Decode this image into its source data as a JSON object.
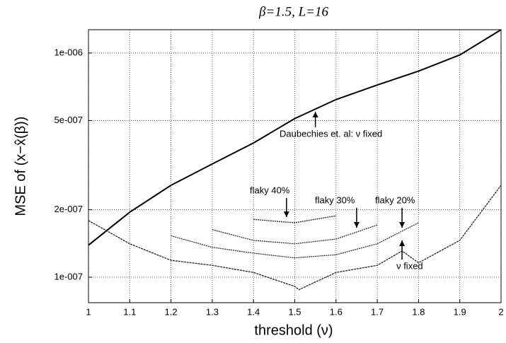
{
  "chart_data": {
    "type": "line",
    "title": "β=1.5, L=16",
    "xlabel": "threshold (ν)",
    "ylabel": "MSE of (x−x̂(β))",
    "xlim": [
      1,
      2
    ],
    "xticks": [
      1,
      1.1,
      1.2,
      1.3,
      1.4,
      1.5,
      1.6,
      1.7,
      1.8,
      1.9,
      2
    ],
    "ylim": [
      7.7e-08,
      1.27e-06
    ],
    "yticks": [
      {
        "value": 1e-07,
        "label": "1e-007"
      },
      {
        "value": 2e-07,
        "label": "2e-007"
      },
      {
        "value": 5e-07,
        "label": "5e-007"
      },
      {
        "value": 1e-06,
        "label": "1e-006"
      }
    ],
    "ylog": true,
    "grid": true,
    "series": [
      {
        "name": "Daubechies et. al: ν fixed",
        "color": "#000000",
        "x": [
          1,
          1.1,
          1.2,
          1.3,
          1.4,
          1.5,
          1.6,
          1.7,
          1.8,
          1.9,
          2
        ],
        "values": [
          1.39e-07,
          1.95e-07,
          2.57e-07,
          3.2e-07,
          3.97e-07,
          5.1e-07,
          6.2e-07,
          7.2e-07,
          8.3e-07,
          9.8e-07,
          1.27e-06
        ]
      },
      {
        "name": "ν fixed",
        "color": "#222222",
        "x": [
          1,
          1.1,
          1.2,
          1.3,
          1.4,
          1.5,
          1.51,
          1.6,
          1.7,
          1.76,
          1.8,
          1.9,
          2
        ],
        "values": [
          1.79e-07,
          1.41e-07,
          1.19e-07,
          1.13e-07,
          1.05e-07,
          9.1e-08,
          8.8e-08,
          1.05e-07,
          1.13e-07,
          1.31e-07,
          1.16e-07,
          1.46e-07,
          2.57e-07
        ]
      },
      {
        "name": "flaky 20%",
        "color": "#222222",
        "x": [
          1.2,
          1.3,
          1.4,
          1.5,
          1.6,
          1.7,
          1.8
        ],
        "values": [
          1.53e-07,
          1.36e-07,
          1.28e-07,
          1.22e-07,
          1.26e-07,
          1.41e-07,
          1.75e-07
        ]
      },
      {
        "name": "flaky 30%",
        "color": "#222222",
        "x": [
          1.3,
          1.4,
          1.5,
          1.6,
          1.7
        ],
        "values": [
          1.63e-07,
          1.46e-07,
          1.41e-07,
          1.48e-07,
          1.71e-07
        ]
      },
      {
        "name": "flaky 40%",
        "color": "#222222",
        "x": [
          1.4,
          1.5,
          1.6
        ],
        "values": [
          1.81e-07,
          1.75e-07,
          1.88e-07
        ]
      }
    ]
  }
}
